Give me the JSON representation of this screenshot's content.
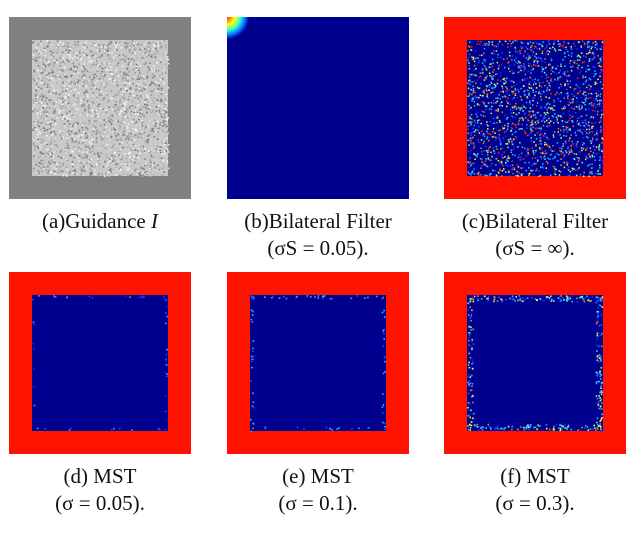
{
  "figure": {
    "panels": [
      {
        "id": "a",
        "caption_line1": "(a)Guidance ",
        "caption_symbol": "I",
        "caption_line2": "",
        "content": "noise-texture",
        "colors": {
          "frame": "#808080",
          "center": "#c8c8c8"
        }
      },
      {
        "id": "b",
        "caption_line1": "(b)Bilateral Filter",
        "caption_symbol": "",
        "caption_line2": "(σS = 0.05).",
        "content": "single-blob",
        "colors": {
          "fill": "#00008f",
          "blob": "#ffff00"
        }
      },
      {
        "id": "c",
        "caption_line1": "(c)Bilateral Filter",
        "caption_symbol": "",
        "caption_line2": "(σS = ∞).",
        "content": "speckle",
        "colors": {
          "frame": "#ff1200",
          "center": "#00008f"
        }
      },
      {
        "id": "d",
        "caption_line1": "(d) MST",
        "caption_symbol": "",
        "caption_line2": "(σ = 0.05).",
        "content": "frame-clean",
        "colors": {
          "frame": "#ff1200",
          "center": "#00008f"
        }
      },
      {
        "id": "e",
        "caption_line1": "(e) MST",
        "caption_symbol": "",
        "caption_line2": "(σ = 0.1).",
        "content": "frame-clean",
        "colors": {
          "frame": "#ff1200",
          "center": "#00008f"
        }
      },
      {
        "id": "f",
        "caption_line1": "(f) MST",
        "caption_symbol": "",
        "caption_line2": "(σ = 0.3).",
        "content": "frame-edges",
        "colors": {
          "frame": "#ff1200",
          "center": "#00008f"
        }
      }
    ]
  }
}
